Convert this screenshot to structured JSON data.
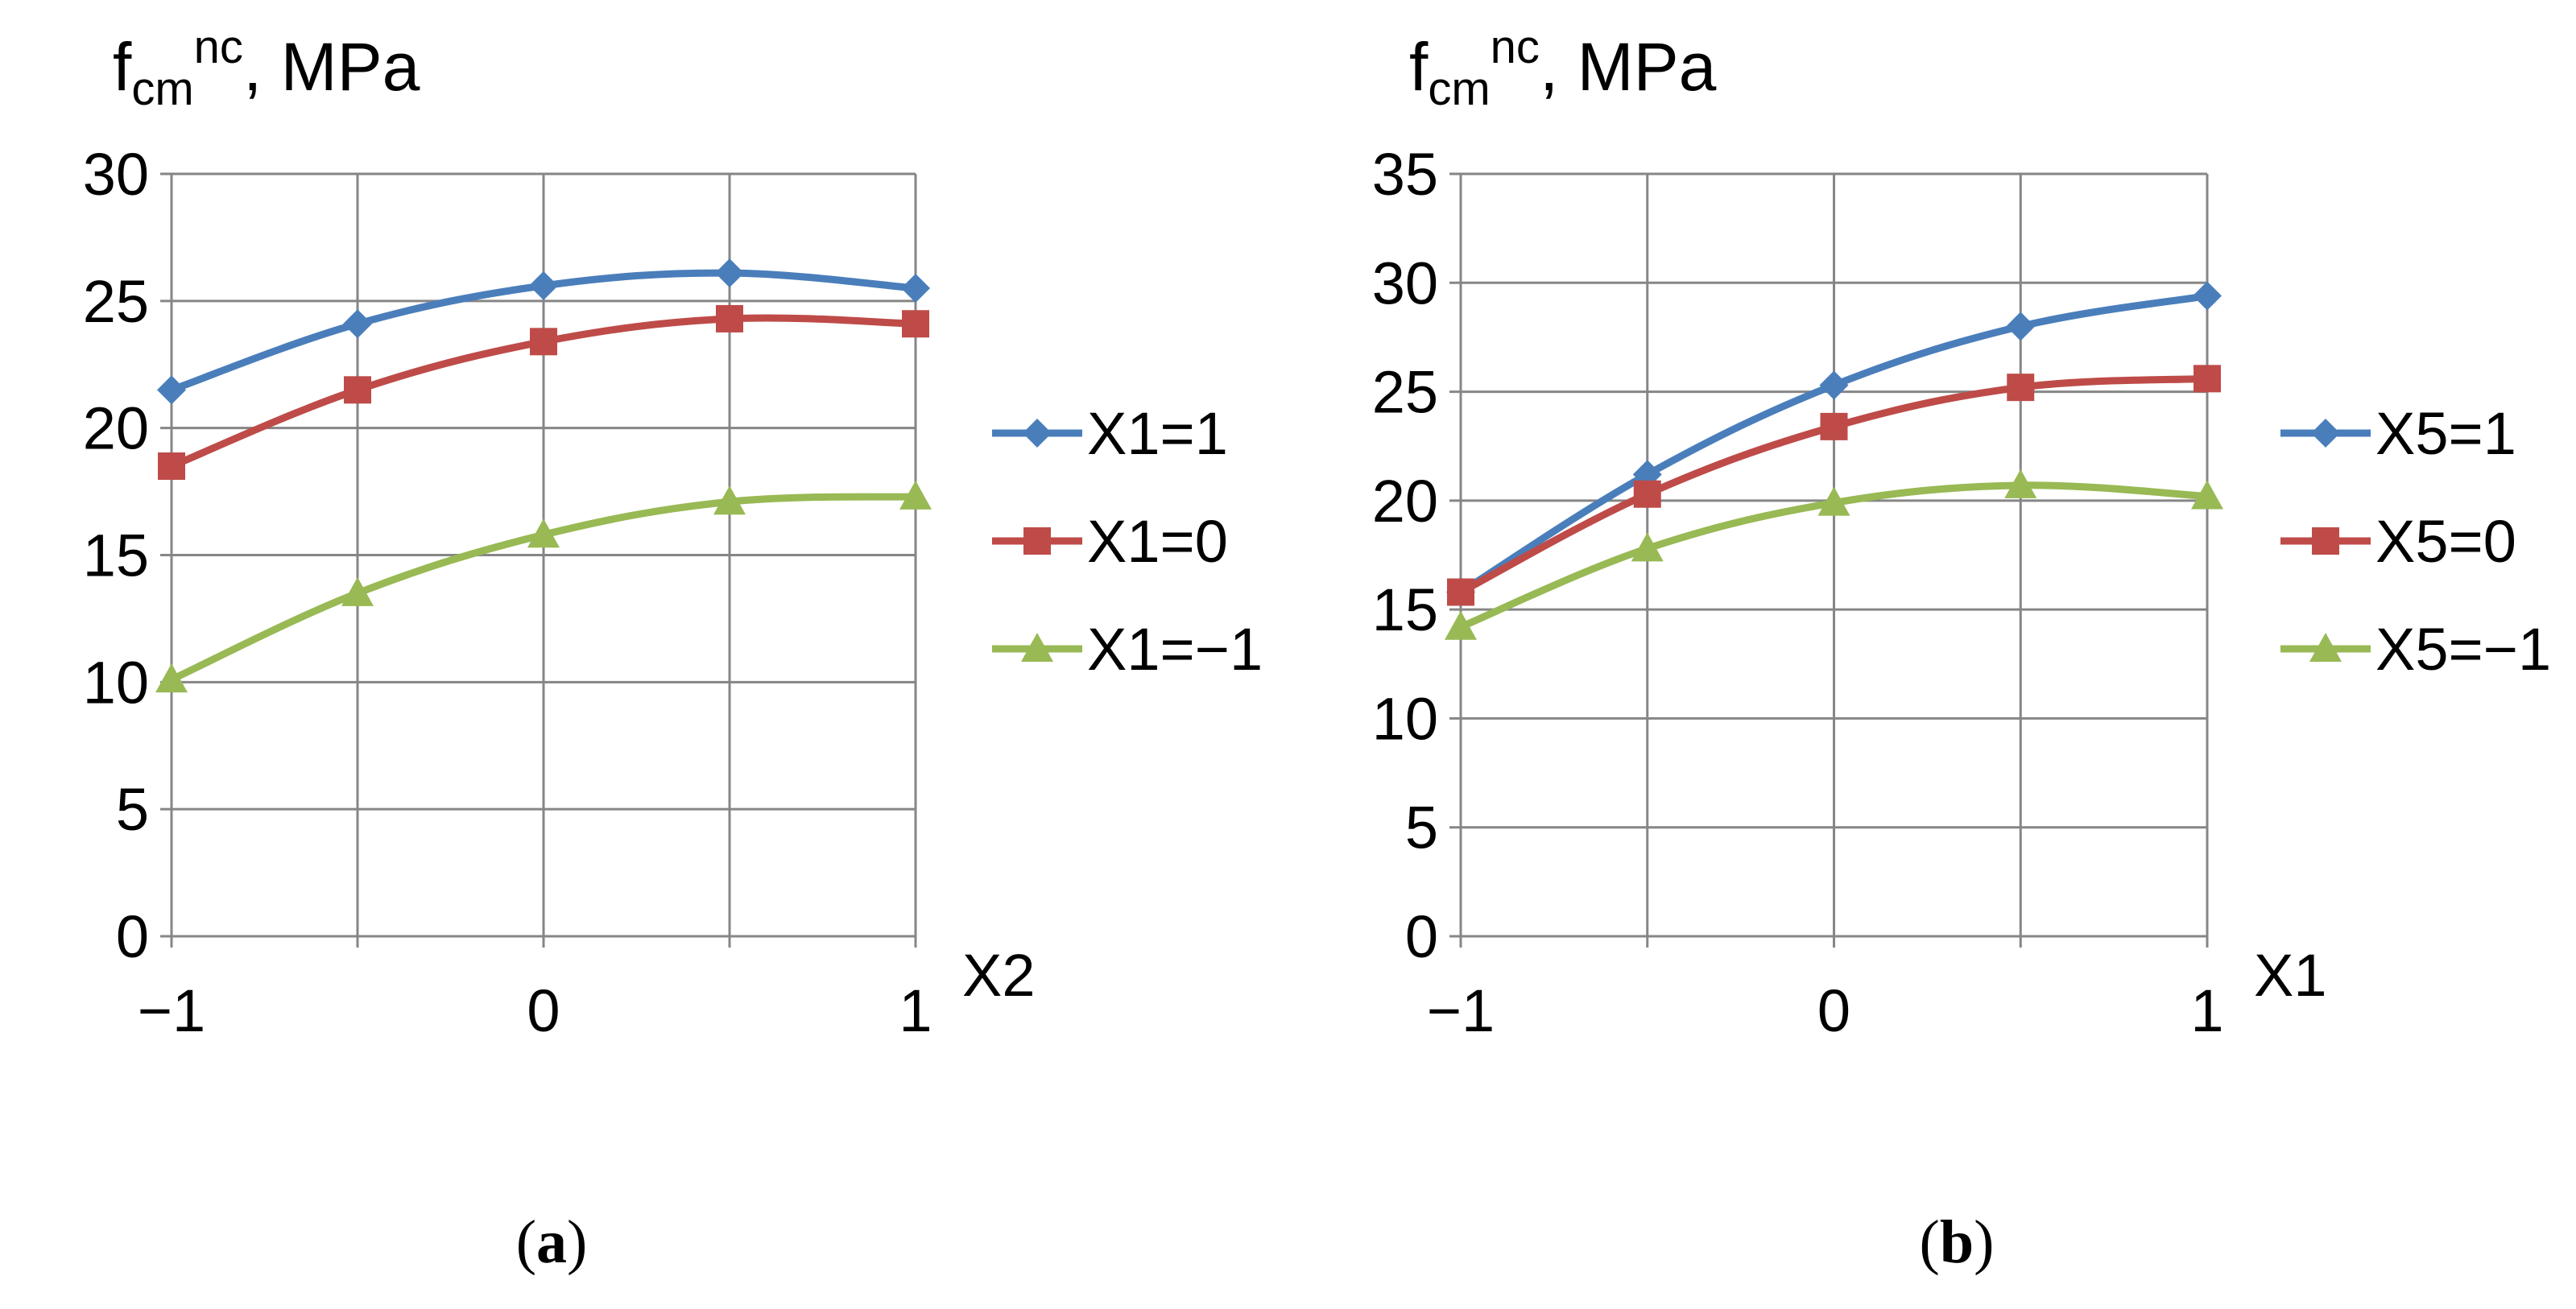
{
  "chart_data": [
    {
      "type": "line",
      "panel_label": "a",
      "ylabel_main": "f",
      "ylabel_sub": "cm",
      "ylabel_sup": "nc",
      "ylabel_unit": ", MPa",
      "xlabel": "X2",
      "x": [
        -1,
        -0.5,
        0,
        0.5,
        1
      ],
      "x_tick_values": [
        -1,
        0,
        1
      ],
      "x_tick_labels": [
        "−1",
        "0",
        "1"
      ],
      "xlim": [
        -1,
        1
      ],
      "ylim": [
        0,
        30
      ],
      "y_ticks": [
        0,
        5,
        10,
        15,
        20,
        25,
        30
      ],
      "grid": true,
      "legend_position": "right",
      "series": [
        {
          "name": "X1=1",
          "color": "#4a7ebb",
          "marker": "diamond",
          "values": [
            21.5,
            24.1,
            25.6,
            26.1,
            25.5
          ]
        },
        {
          "name": "X1=0",
          "color": "#be4b48",
          "marker": "square",
          "values": [
            18.5,
            21.5,
            23.4,
            24.3,
            24.1
          ]
        },
        {
          "name": "X1=−1",
          "color": "#98b954",
          "marker": "triangle",
          "values": [
            10.1,
            13.5,
            15.8,
            17.1,
            17.3
          ]
        }
      ]
    },
    {
      "type": "line",
      "panel_label": "b",
      "ylabel_main": "f",
      "ylabel_sub": "cm",
      "ylabel_sup": "nc",
      "ylabel_unit": ", MPa",
      "xlabel": "X1",
      "x": [
        -1,
        -0.5,
        0,
        0.5,
        1
      ],
      "x_tick_values": [
        -1,
        0,
        1
      ],
      "x_tick_labels": [
        "−1",
        "0",
        "1"
      ],
      "xlim": [
        -1,
        1
      ],
      "ylim": [
        0,
        35
      ],
      "y_ticks": [
        0,
        5,
        10,
        15,
        20,
        25,
        30,
        35
      ],
      "grid": true,
      "legend_position": "right",
      "series": [
        {
          "name": "X5=1",
          "color": "#4a7ebb",
          "marker": "diamond",
          "values": [
            15.8,
            21.2,
            25.3,
            28.0,
            29.4
          ]
        },
        {
          "name": "X5=0",
          "color": "#be4b48",
          "marker": "square",
          "values": [
            15.8,
            20.3,
            23.4,
            25.2,
            25.6
          ]
        },
        {
          "name": "X5=−1",
          "color": "#98b954",
          "marker": "triangle",
          "values": [
            14.2,
            17.8,
            19.9,
            20.7,
            20.2
          ]
        }
      ]
    }
  ]
}
